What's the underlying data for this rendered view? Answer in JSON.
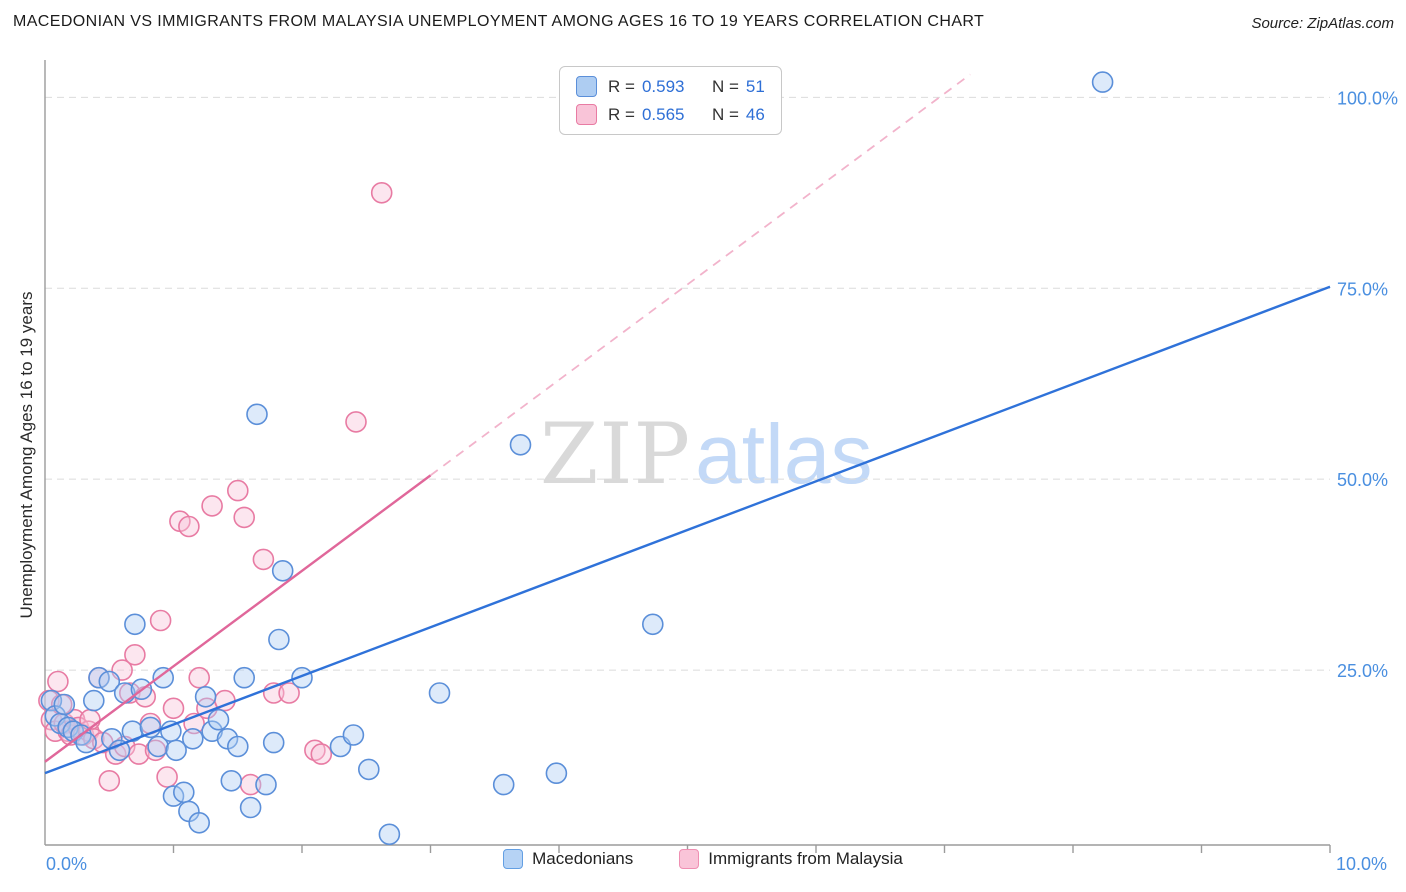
{
  "header": {
    "title": "MACEDONIAN VS IMMIGRANTS FROM MALAYSIA UNEMPLOYMENT AMONG AGES 16 TO 19 YEARS CORRELATION CHART",
    "source": "Source: ZipAtlas.com"
  },
  "watermark": {
    "zip": "ZIP",
    "atlas": "atlas"
  },
  "legend_stats": {
    "r_label": "R =",
    "n_label": "N =",
    "rows": [
      {
        "series": "Macedonians",
        "r": "0.593",
        "n": "51",
        "swatch_style": "background:#aecdf2;border-color:#5b8fd9"
      },
      {
        "series": "Immigrants from Malaysia",
        "r": "0.565",
        "n": "46",
        "swatch_style": "background:#f9c4d8;border-color:#e87ba3"
      }
    ]
  },
  "bottom_legend": [
    {
      "label": "Macedonians",
      "swatch_style": "background:#b6d3f5;border-color:#639fe3"
    },
    {
      "label": "Immigrants from Malaysia",
      "swatch_style": "background:#f9c4d8;border-color:#ef8fb2"
    }
  ],
  "chart_data": {
    "type": "scatter",
    "title": "MACEDONIAN VS IMMIGRANTS FROM MALAYSIA UNEMPLOYMENT AMONG AGES 16 TO 19 YEARS CORRELATION CHART",
    "xlabel": "",
    "ylabel": "Unemployment Among Ages 16 to 19 years",
    "x_range": [
      0,
      10
    ],
    "y_range": [
      0,
      105
    ],
    "grid": true,
    "legend_position": "top-center",
    "x_tick_labels": {
      "left": "0.0%",
      "right": "10.0%"
    },
    "y_gridlines": [
      {
        "value": 25,
        "label": "25.0%"
      },
      {
        "value": 50,
        "label": "50.0%"
      },
      {
        "value": 75,
        "label": "75.0%"
      },
      {
        "value": 100,
        "label": "100.0%"
      }
    ],
    "series": [
      {
        "id": "macedonians",
        "name": "Macedonians",
        "r": 0.593,
        "n": 51,
        "point_color": "#aecdf2",
        "point_border": "#5b8fd9",
        "line_color": "#2f72d9",
        "trend": {
          "x0": 0,
          "y0": 11.5,
          "x1": 10,
          "y1": 75.2
        },
        "points": [
          [
            0.05,
            21
          ],
          [
            0.08,
            19
          ],
          [
            0.12,
            18
          ],
          [
            0.15,
            20.5
          ],
          [
            0.18,
            17.5
          ],
          [
            0.22,
            17
          ],
          [
            0.28,
            16.5
          ],
          [
            0.32,
            15.5
          ],
          [
            0.38,
            21
          ],
          [
            0.42,
            24
          ],
          [
            0.5,
            23.5
          ],
          [
            0.52,
            16
          ],
          [
            0.58,
            14.5
          ],
          [
            0.62,
            22
          ],
          [
            0.68,
            17
          ],
          [
            0.7,
            31
          ],
          [
            0.75,
            22.5
          ],
          [
            0.82,
            17.5
          ],
          [
            0.88,
            15
          ],
          [
            0.92,
            24
          ],
          [
            0.98,
            17
          ],
          [
            1.0,
            8.5
          ],
          [
            1.02,
            14.5
          ],
          [
            1.08,
            9
          ],
          [
            1.12,
            6.5
          ],
          [
            1.15,
            16
          ],
          [
            1.2,
            5
          ],
          [
            1.25,
            21.5
          ],
          [
            1.3,
            17
          ],
          [
            1.35,
            18.5
          ],
          [
            1.42,
            16
          ],
          [
            1.45,
            10.5
          ],
          [
            1.5,
            15
          ],
          [
            1.55,
            24
          ],
          [
            1.6,
            7
          ],
          [
            1.65,
            58.5
          ],
          [
            1.72,
            10
          ],
          [
            1.78,
            15.5
          ],
          [
            1.82,
            29
          ],
          [
            1.85,
            38
          ],
          [
            2.0,
            24
          ],
          [
            2.3,
            15
          ],
          [
            2.4,
            16.5
          ],
          [
            2.52,
            12
          ],
          [
            2.68,
            3.5
          ],
          [
            3.07,
            22
          ],
          [
            3.57,
            10
          ],
          [
            3.7,
            54.5
          ],
          [
            3.98,
            11.5
          ],
          [
            4.73,
            31
          ],
          [
            8.23,
            102
          ]
        ]
      },
      {
        "id": "malaysia",
        "name": "Immigrants from Malaysia",
        "r": 0.565,
        "n": 46,
        "point_color": "#f9c4d8",
        "point_border": "#e87ba3",
        "line_color": "#e0679a",
        "dash_color": "#f2b3cb",
        "trend": {
          "x0": 0,
          "y0": 13,
          "x1": 3.0,
          "y1": 50.5
        },
        "trend_extension": {
          "x0": 3.0,
          "y0": 50.5,
          "x1": 7.2,
          "y1": 103,
          "dashed": true
        },
        "points": [
          [
            0.03,
            21
          ],
          [
            0.05,
            18.5
          ],
          [
            0.08,
            17
          ],
          [
            0.1,
            23.5
          ],
          [
            0.13,
            20.5
          ],
          [
            0.15,
            18
          ],
          [
            0.18,
            17
          ],
          [
            0.2,
            16.5
          ],
          [
            0.23,
            18.5
          ],
          [
            0.26,
            17.5
          ],
          [
            0.3,
            16.5
          ],
          [
            0.34,
            17
          ],
          [
            0.35,
            18.5
          ],
          [
            0.38,
            16
          ],
          [
            0.42,
            24
          ],
          [
            0.45,
            15.5
          ],
          [
            0.5,
            10.5
          ],
          [
            0.55,
            14
          ],
          [
            0.6,
            25
          ],
          [
            0.62,
            15
          ],
          [
            0.66,
            22
          ],
          [
            0.7,
            27
          ],
          [
            0.73,
            14
          ],
          [
            0.78,
            21.5
          ],
          [
            0.82,
            18
          ],
          [
            0.86,
            14.5
          ],
          [
            0.9,
            31.5
          ],
          [
            0.95,
            11
          ],
          [
            1.0,
            20
          ],
          [
            1.05,
            44.5
          ],
          [
            1.12,
            43.8
          ],
          [
            1.16,
            18
          ],
          [
            1.2,
            24
          ],
          [
            1.26,
            20
          ],
          [
            1.3,
            46.5
          ],
          [
            1.4,
            21
          ],
          [
            1.5,
            48.5
          ],
          [
            1.55,
            45
          ],
          [
            1.6,
            10
          ],
          [
            1.7,
            39.5
          ],
          [
            1.78,
            22
          ],
          [
            1.9,
            22
          ],
          [
            2.1,
            14.5
          ],
          [
            2.15,
            14
          ],
          [
            2.42,
            57.5
          ],
          [
            2.62,
            87.5
          ]
        ]
      }
    ]
  }
}
